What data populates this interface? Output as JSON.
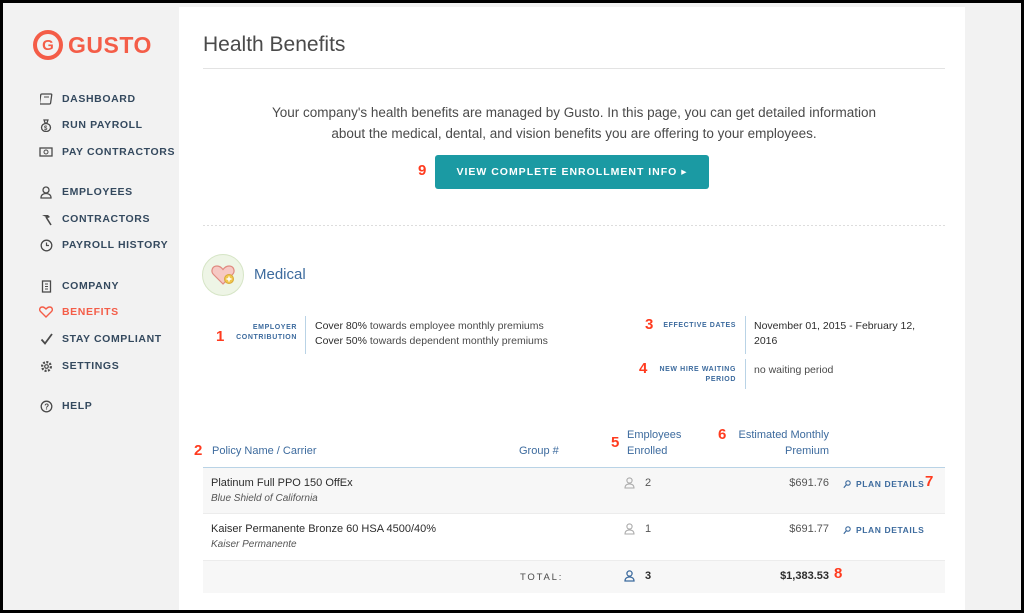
{
  "brand": {
    "name": "GUSTO",
    "mark": "G",
    "color": "#f45d48"
  },
  "sidebar": {
    "items": [
      {
        "label": "DASHBOARD",
        "icon": "dashboard-icon"
      },
      {
        "label": "RUN PAYROLL",
        "icon": "money-bag-icon"
      },
      {
        "label": "PAY CONTRACTORS",
        "icon": "cash-icon"
      },
      {
        "label": "EMPLOYEES",
        "icon": "person-icon"
      },
      {
        "label": "CONTRACTORS",
        "icon": "hammer-icon"
      },
      {
        "label": "PAYROLL HISTORY",
        "icon": "clock-icon"
      },
      {
        "label": "COMPANY",
        "icon": "building-icon"
      },
      {
        "label": "BENEFITS",
        "icon": "heart-icon",
        "active": true
      },
      {
        "label": "STAY COMPLIANT",
        "icon": "check-icon"
      },
      {
        "label": "SETTINGS",
        "icon": "gear-icon"
      },
      {
        "label": "HELP",
        "icon": "help-icon"
      }
    ]
  },
  "page": {
    "title": "Health Benefits",
    "intro_line1": "Your company's health benefits are managed by Gusto. In this page, you can get detailed information",
    "intro_line2": "about the medical, dental, and vision benefits you are offering to your employees.",
    "cta_label": "VIEW COMPLETE ENROLLMENT INFO ▸"
  },
  "annotations": [
    "1",
    "2",
    "3",
    "4",
    "5",
    "6",
    "7",
    "8",
    "9"
  ],
  "medical": {
    "title": "Medical",
    "employer_contribution_label_1": "EMPLOYER",
    "employer_contribution_label_2": "CONTRIBUTION",
    "contribution_line1_pct": "Cover 80%",
    "contribution_line1_rest": " towards employee monthly premiums",
    "contribution_line2_pct": "Cover 50%",
    "contribution_line2_rest": " towards dependent monthly premiums",
    "effective_dates_label": "EFFECTIVE DATES",
    "effective_dates_line1": "November 01, 2015 - February 12,",
    "effective_dates_line2": "2016",
    "waiting_label_1": "NEW HIRE WAITING",
    "waiting_label_2": "PERIOD",
    "waiting_value": "no waiting period"
  },
  "table": {
    "headers": {
      "policy": "Policy Name / Carrier",
      "group": "Group #",
      "enrolled_1": "Employees",
      "enrolled_2": "Enrolled",
      "premium_1": "Estimated Monthly",
      "premium_2": "Premium"
    },
    "rows": [
      {
        "plan": "Platinum Full PPO 150 OffEx",
        "carrier": "Blue Shield of California",
        "enrolled": "2",
        "premium": "$691.76",
        "link": "PLAN DETAILS"
      },
      {
        "plan": "Kaiser Permanente Bronze 60 HSA 4500/40%",
        "carrier": "Kaiser Permanente",
        "enrolled": "1",
        "premium": "$691.77",
        "link": "PLAN DETAILS"
      }
    ],
    "total": {
      "label": "TOTAL:",
      "enrolled": "3",
      "premium": "$1,383.53"
    }
  }
}
